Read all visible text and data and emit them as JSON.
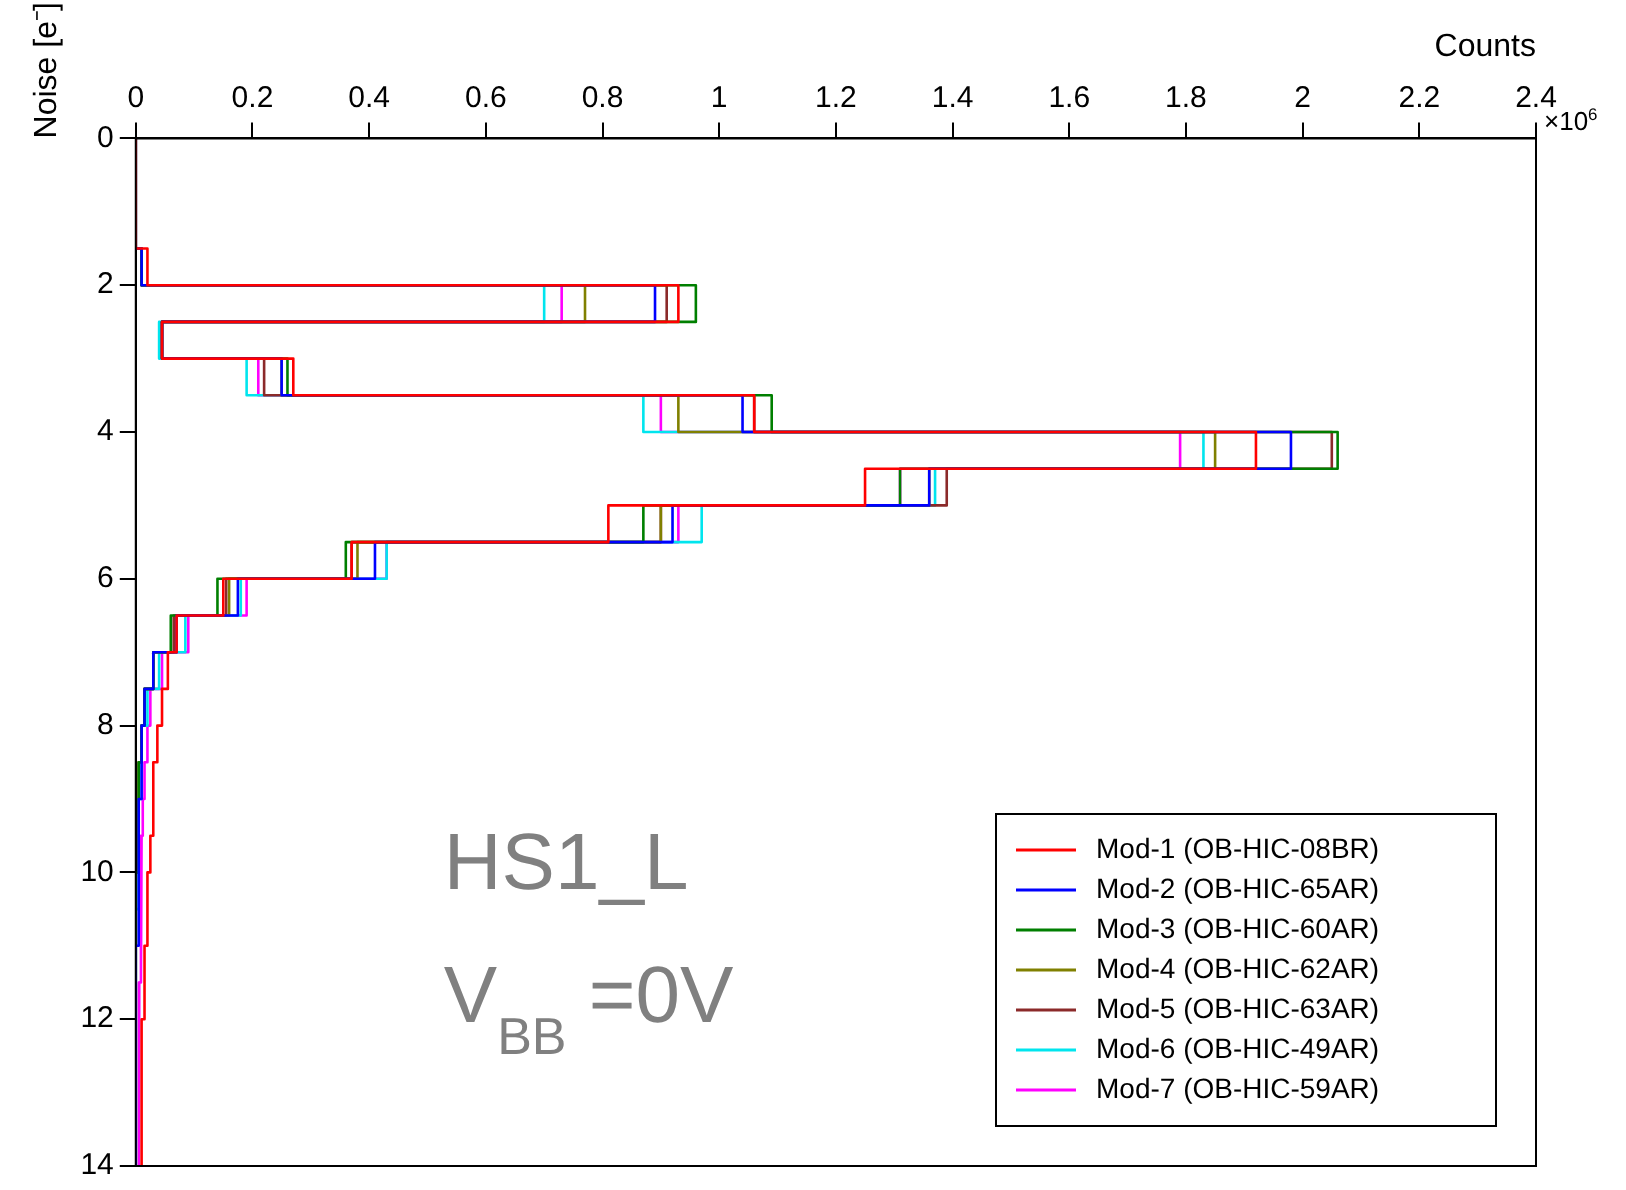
{
  "chart_data": {
    "type": "histogram",
    "orientation": "horizontal",
    "xlabel": "Counts",
    "ylabel": "Noise [e⁻]",
    "bins": [
      0,
      0.5,
      1,
      1.5,
      2,
      2.5,
      3,
      3.5,
      4,
      4.5,
      5,
      5.5,
      6,
      6.5,
      7,
      7.5,
      8,
      8.5,
      9,
      9.5,
      10,
      10.5,
      11,
      11.5,
      12,
      12.5,
      13,
      13.5,
      14
    ],
    "series": [
      {
        "name": "Mod-1 (OB-HIC-08BR)",
        "color": "#ff0000",
        "values": [
          0,
          0,
          0,
          0.02,
          0.93,
          0.045,
          0.27,
          1.06,
          1.92,
          1.25,
          0.81,
          0.37,
          0.15,
          0.07,
          0.055,
          0.045,
          0.037,
          0.03,
          0.03,
          0.025,
          0.02,
          0.02,
          0.015,
          0.015,
          0.01,
          0.01,
          0.01,
          0.01
        ]
      },
      {
        "name": "Mod-2 (OB-HIC-65AR)",
        "color": "#0000ff",
        "values": [
          0,
          0,
          0,
          0.01,
          0.89,
          0.045,
          0.25,
          1.04,
          1.98,
          1.36,
          0.92,
          0.41,
          0.175,
          0.07,
          0.03,
          0.015,
          0.01,
          0.01,
          0.005,
          0.005,
          0.005,
          0.005,
          0,
          0,
          0,
          0,
          0,
          0
        ]
      },
      {
        "name": "Mod-3 (OB-HIC-60AR)",
        "color": "#007f00",
        "values": [
          0,
          0,
          0,
          0.01,
          0.96,
          0.045,
          0.26,
          1.09,
          2.06,
          1.31,
          0.87,
          0.36,
          0.14,
          0.06,
          0.03,
          0.015,
          0.01,
          0.005,
          0.005,
          0.005,
          0,
          0,
          0,
          0,
          0,
          0,
          0,
          0
        ]
      },
      {
        "name": "Mod-4 (OB-HIC-62AR)",
        "color": "#808000",
        "values": [
          0,
          0,
          0,
          0.01,
          0.77,
          0.045,
          0.25,
          0.93,
          1.85,
          1.36,
          0.9,
          0.38,
          0.16,
          0.07,
          0.03,
          0.015,
          0.01,
          0.005,
          0.005,
          0.005,
          0,
          0,
          0,
          0,
          0,
          0,
          0,
          0
        ]
      },
      {
        "name": "Mod-5 (OB-HIC-63AR)",
        "color": "#8b2a2a",
        "values": [
          0,
          0,
          0,
          0.01,
          0.91,
          0.045,
          0.22,
          1.06,
          2.05,
          1.39,
          0.9,
          0.37,
          0.155,
          0.065,
          0.03,
          0.015,
          0.01,
          0.005,
          0.005,
          0.005,
          0,
          0,
          0,
          0,
          0,
          0,
          0,
          0
        ]
      },
      {
        "name": "Mod-6 (OB-HIC-49AR)",
        "color": "#00e5ee",
        "values": [
          0,
          0,
          0,
          0.01,
          0.7,
          0.04,
          0.19,
          0.87,
          1.83,
          1.37,
          0.97,
          0.43,
          0.18,
          0.085,
          0.04,
          0.02,
          0.01,
          0.01,
          0.005,
          0.005,
          0.005,
          0,
          0,
          0,
          0,
          0,
          0,
          0
        ]
      },
      {
        "name": "Mod-7 (OB-HIC-59AR)",
        "color": "#ff00ff",
        "values": [
          0,
          0,
          0,
          0.01,
          0.73,
          0.045,
          0.21,
          0.9,
          1.79,
          1.31,
          0.93,
          0.43,
          0.19,
          0.09,
          0.045,
          0.025,
          0.02,
          0.015,
          0.012,
          0.01,
          0.01,
          0.008,
          0.008,
          0.006,
          0.006,
          0.005,
          0.005,
          0.005
        ]
      }
    ],
    "xlim": [
      0,
      2.4
    ],
    "xticks": [
      0,
      0.2,
      0.4,
      0.6,
      0.8,
      1,
      1.2,
      1.4,
      1.6,
      1.8,
      2,
      2.2,
      2.4
    ],
    "ylim": [
      14,
      0
    ],
    "yticks": [
      0,
      2,
      4,
      6,
      8,
      10,
      12,
      14
    ],
    "grid": false,
    "legend": "bottom right",
    "annotations": [
      "×10$^{6}$",
      "HS1_L",
      "V$_{BB}$ =0V"
    ]
  }
}
